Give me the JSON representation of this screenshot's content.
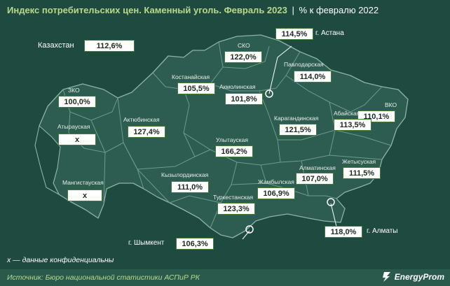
{
  "header": {
    "title": "Индекс потребительских цен. Каменный уголь. Февраль 2023",
    "separator": "|",
    "subtitle": "% к февралю 2022"
  },
  "kazakhstan": {
    "label": "Казахстан",
    "value": "112,6%"
  },
  "regions": [
    {
      "id": "sko",
      "name": "СКО",
      "value": "122,0%"
    },
    {
      "id": "astana",
      "name": "г. Астана",
      "value": "114,5%"
    },
    {
      "id": "pavlodar",
      "name": "Павлодарская",
      "value": "114,0%"
    },
    {
      "id": "kostanay",
      "name": "Костанайская",
      "value": "105,5%"
    },
    {
      "id": "akmola",
      "name": "Акмолинская",
      "value": "101,8%"
    },
    {
      "id": "zko",
      "name": "ЗКО",
      "value": "100,0%"
    },
    {
      "id": "vko",
      "name": "ВКО",
      "value": "110,1%"
    },
    {
      "id": "abay",
      "name": "Абайская",
      "value": "113,5%"
    },
    {
      "id": "aktobe",
      "name": "Актюбинская",
      "value": "127,4%"
    },
    {
      "id": "karaganda",
      "name": "Карагандинская",
      "value": "121,5%"
    },
    {
      "id": "atyrau",
      "name": "Атырауская",
      "value": "х"
    },
    {
      "id": "ulytau",
      "name": "Улытауская",
      "value": "166,2%"
    },
    {
      "id": "zhetysu",
      "name": "Жетысуская",
      "value": "111,5%"
    },
    {
      "id": "almaty_obl",
      "name": "Алматинская",
      "value": "107,0%"
    },
    {
      "id": "mangistau",
      "name": "Мангистауская",
      "value": "х"
    },
    {
      "id": "kyzylorda",
      "name": "Кызылординская",
      "value": "111,0%"
    },
    {
      "id": "zhambyl",
      "name": "Жамбылская",
      "value": "106,9%"
    },
    {
      "id": "turkestan",
      "name": "Туркестанская",
      "value": "123,3%"
    },
    {
      "id": "almaty_city",
      "name": "г. Алматы",
      "value": "118,0%"
    },
    {
      "id": "shymkent",
      "name": "г. Шымкент",
      "value": "106,3%"
    }
  ],
  "note": "х — данные конфиденциальны",
  "source": "Источник: Бюро национальной статистики АСПиР РК",
  "logo": {
    "text": "EnergyProm"
  },
  "colors": {
    "background": "#1f4a3f",
    "map_fill": "#2c5d50",
    "border": "#6f9a8c",
    "title": "#b8d98a",
    "box_border": "#3d7d34"
  }
}
